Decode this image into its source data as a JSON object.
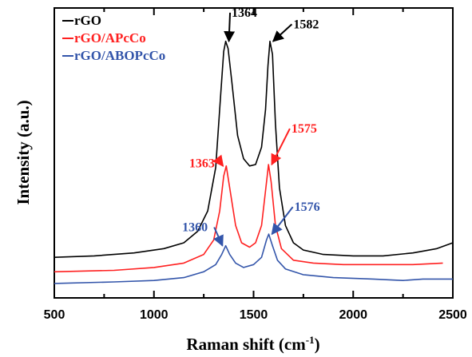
{
  "chart_data": {
    "type": "line",
    "title": "",
    "xlabel": "Raman shift (cm",
    "xlabel_sup": "-1",
    "xlabel_end": ")",
    "ylabel": "Intensity (a.u.)",
    "xlim": [
      500,
      2500
    ],
    "ylim": [
      0,
      100
    ],
    "x_ticks": [
      "500",
      "1000",
      "1500",
      "2000",
      "2500"
    ],
    "y_ticks_labeled": false,
    "grid": false,
    "legend_position": "top-left",
    "series": [
      {
        "name": "rGO",
        "color": "#000000",
        "points": [
          [
            500,
            14
          ],
          [
            700,
            14.5
          ],
          [
            900,
            15.5
          ],
          [
            1050,
            17
          ],
          [
            1150,
            19
          ],
          [
            1220,
            23
          ],
          [
            1270,
            30
          ],
          [
            1310,
            45
          ],
          [
            1335,
            70
          ],
          [
            1350,
            85
          ],
          [
            1360,
            88.5
          ],
          [
            1372,
            86
          ],
          [
            1390,
            75
          ],
          [
            1420,
            56
          ],
          [
            1450,
            48
          ],
          [
            1480,
            45.5
          ],
          [
            1510,
            46
          ],
          [
            1540,
            52
          ],
          [
            1560,
            65
          ],
          [
            1572,
            80
          ],
          [
            1582,
            88.5
          ],
          [
            1595,
            84
          ],
          [
            1610,
            60
          ],
          [
            1630,
            38
          ],
          [
            1660,
            25
          ],
          [
            1700,
            19
          ],
          [
            1750,
            16.5
          ],
          [
            1850,
            15
          ],
          [
            2000,
            14.5
          ],
          [
            2150,
            14.5
          ],
          [
            2300,
            15.5
          ],
          [
            2420,
            17
          ],
          [
            2500,
            19
          ]
        ]
      },
      {
        "name": "rGO/APcCo",
        "color": "#ff2020",
        "points": [
          [
            500,
            9
          ],
          [
            800,
            9.5
          ],
          [
            1000,
            10.5
          ],
          [
            1150,
            12
          ],
          [
            1250,
            15
          ],
          [
            1300,
            20
          ],
          [
            1330,
            30
          ],
          [
            1350,
            42
          ],
          [
            1363,
            45.5
          ],
          [
            1380,
            38
          ],
          [
            1410,
            25
          ],
          [
            1440,
            19
          ],
          [
            1480,
            17.5
          ],
          [
            1510,
            19
          ],
          [
            1540,
            25
          ],
          [
            1560,
            37
          ],
          [
            1575,
            46
          ],
          [
            1588,
            40
          ],
          [
            1610,
            25
          ],
          [
            1640,
            17
          ],
          [
            1700,
            13
          ],
          [
            1800,
            12
          ],
          [
            1950,
            11.5
          ],
          [
            2100,
            11.5
          ],
          [
            2300,
            11.5
          ],
          [
            2450,
            12
          ]
        ]
      },
      {
        "name": "rGO/ABOPcCo",
        "color": "#3355aa",
        "points": [
          [
            500,
            5
          ],
          [
            800,
            5.5
          ],
          [
            1000,
            6
          ],
          [
            1150,
            7
          ],
          [
            1250,
            9
          ],
          [
            1310,
            11.5
          ],
          [
            1340,
            15
          ],
          [
            1360,
            18
          ],
          [
            1380,
            15
          ],
          [
            1410,
            12
          ],
          [
            1450,
            10.5
          ],
          [
            1500,
            11.5
          ],
          [
            1540,
            14
          ],
          [
            1565,
            20
          ],
          [
            1576,
            22
          ],
          [
            1595,
            18
          ],
          [
            1620,
            13
          ],
          [
            1660,
            10
          ],
          [
            1750,
            8
          ],
          [
            1900,
            7
          ],
          [
            2100,
            6.5
          ],
          [
            2250,
            6
          ],
          [
            2350,
            6.5
          ],
          [
            2500,
            6.5
          ]
        ]
      }
    ],
    "annotations": [
      {
        "label": "1364",
        "color": "#000000",
        "peak": [
          1360,
          88.5
        ],
        "text_at": [
          1390,
          97
        ]
      },
      {
        "label": "1582",
        "color": "#000000",
        "peak": [
          1582,
          88.5
        ],
        "text_at": [
          1700,
          93
        ]
      },
      {
        "label": "1363",
        "color": "#ff2020",
        "peak": [
          1363,
          45.5
        ],
        "text_at": [
          1185,
          45
        ]
      },
      {
        "label": "1575",
        "color": "#ff2020",
        "peak": [
          1575,
          46
        ],
        "text_at": [
          1690,
          57
        ]
      },
      {
        "label": "1360",
        "color": "#3355aa",
        "peak": [
          1360,
          18
        ],
        "text_at": [
          1150,
          23
        ]
      },
      {
        "label": "1576",
        "color": "#3355aa",
        "peak": [
          1576,
          22
        ],
        "text_at": [
          1705,
          30
        ]
      }
    ]
  }
}
